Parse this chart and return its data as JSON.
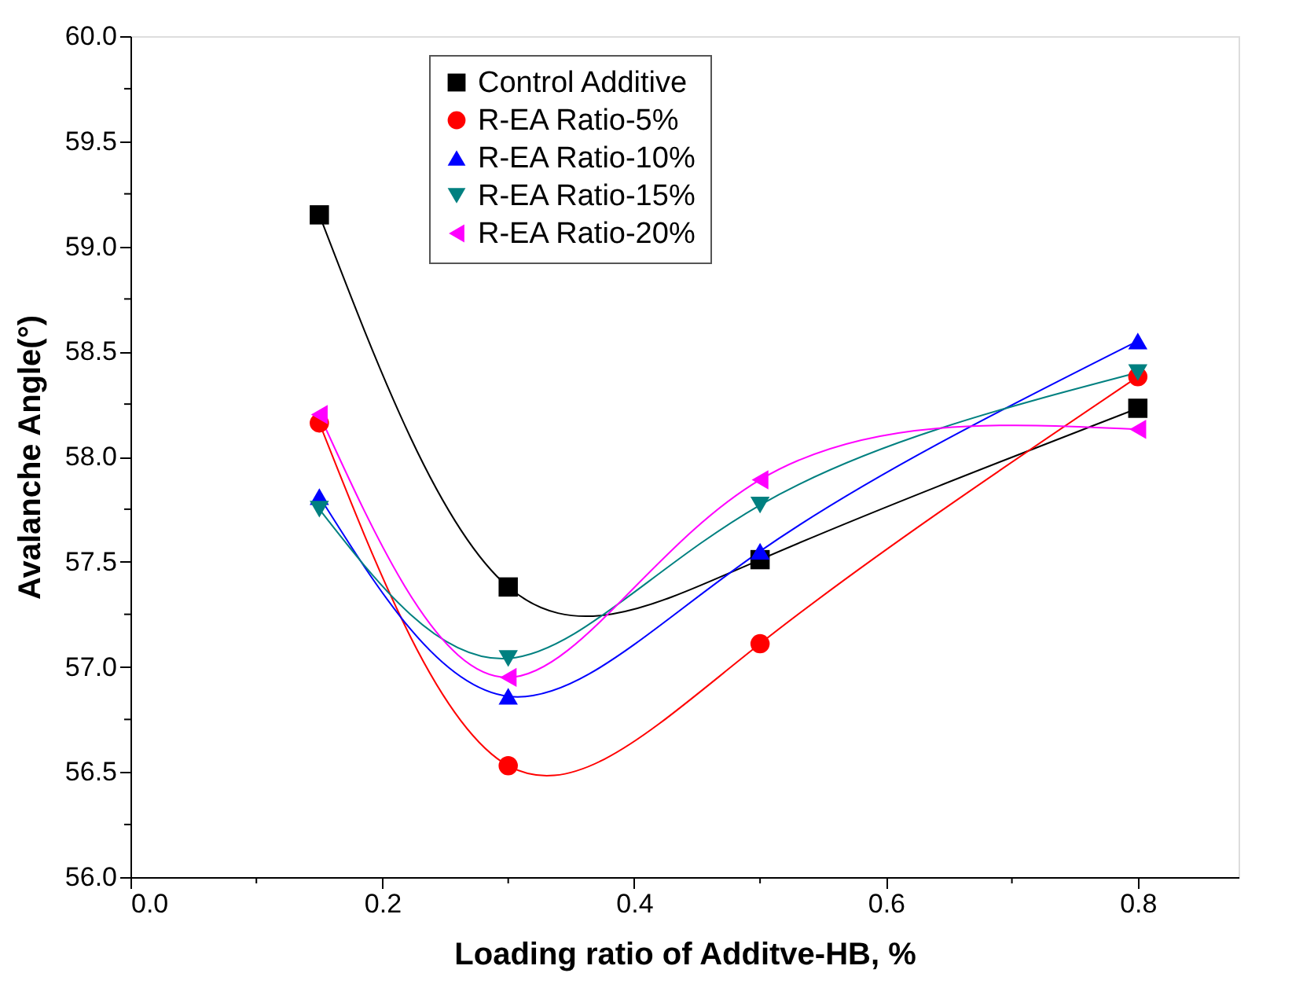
{
  "chart_data": {
    "type": "line",
    "xlabel": "Loading ratio of Additve-HB, %",
    "ylabel": "Avalanche Angle(°)",
    "x": [
      0.15,
      0.3,
      0.5,
      0.8
    ],
    "series": [
      {
        "name": "Control Additive",
        "color": "#000000",
        "marker": "square",
        "values": [
          59.15,
          57.38,
          57.51,
          58.23
        ]
      },
      {
        "name": "R-EA Ratio-5%",
        "color": "#ff0000",
        "marker": "circle",
        "values": [
          58.16,
          56.53,
          57.11,
          58.38
        ]
      },
      {
        "name": "R-EA Ratio-10%",
        "color": "#0000ff",
        "marker": "triangle-up",
        "values": [
          57.81,
          56.86,
          57.55,
          58.55
        ]
      },
      {
        "name": "R-EA Ratio-15%",
        "color": "#008080",
        "marker": "triangle-down",
        "values": [
          57.75,
          57.04,
          57.77,
          58.4
        ]
      },
      {
        "name": "R-EA Ratio-20%",
        "color": "#ff00ff",
        "marker": "triangle-left",
        "values": [
          58.2,
          56.95,
          57.89,
          58.13
        ]
      }
    ],
    "xlim": [
      0.0,
      0.88
    ],
    "xticks": [
      {
        "value": 0.0,
        "label": "0.0"
      },
      {
        "value": 0.1,
        "label": null
      },
      {
        "value": 0.2,
        "label": "0.2"
      },
      {
        "value": 0.3,
        "label": null
      },
      {
        "value": 0.4,
        "label": "0.4"
      },
      {
        "value": 0.5,
        "label": null
      },
      {
        "value": 0.6,
        "label": "0.6"
      },
      {
        "value": 0.7,
        "label": null
      },
      {
        "value": 0.8,
        "label": "0.8"
      }
    ],
    "ylim": [
      56.0,
      60.0
    ],
    "yticks": [
      {
        "value": 56.0,
        "label": "56.0"
      },
      {
        "value": 56.25,
        "label": null
      },
      {
        "value": 56.5,
        "label": "56.5"
      },
      {
        "value": 56.75,
        "label": null
      },
      {
        "value": 57.0,
        "label": "57.0"
      },
      {
        "value": 57.25,
        "label": null
      },
      {
        "value": 57.5,
        "label": "57.5"
      },
      {
        "value": 57.75,
        "label": null
      },
      {
        "value": 58.0,
        "label": "58.0"
      },
      {
        "value": 58.25,
        "label": null
      },
      {
        "value": 58.5,
        "label": "58.5"
      },
      {
        "value": 58.75,
        "label": null
      },
      {
        "value": 59.0,
        "label": "59.0"
      },
      {
        "value": 59.25,
        "label": null
      },
      {
        "value": 59.5,
        "label": "59.5"
      },
      {
        "value": 59.75,
        "label": null
      },
      {
        "value": 60.0,
        "label": "60.0"
      }
    ],
    "grid": false,
    "legend": "top",
    "line_style": "solid"
  }
}
